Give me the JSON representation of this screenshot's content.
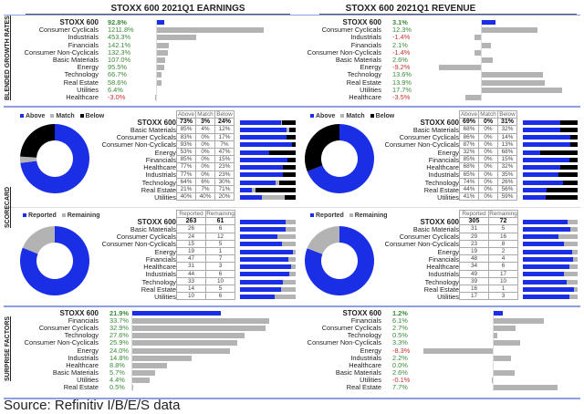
{
  "colors": {
    "above": "#1a2ee6",
    "match": "#b3b3b3",
    "below": "#000000",
    "positive": "#3a8a3a",
    "negative": "#d03030"
  },
  "side_labels": {
    "growth": "BLENDED GROWTH RATES",
    "scorecard": "SCORECARD",
    "surprise": "SURPRISE FACTORS"
  },
  "source": "Source: Refinitiv I/B/E/S data",
  "chart_data": [
    {
      "type": "bar",
      "title": "STOXX 600 2021Q1 EARNINGS",
      "section": "growth",
      "orientation": "horizontal",
      "categories": [
        "STOXX 600",
        "Consumer Cyclicals",
        "Industrials",
        "Financials",
        "Consumer Non-Cyclicals",
        "Basic Materials",
        "Energy",
        "Technology",
        "Real Estate",
        "Utilities",
        "Healthcare"
      ],
      "labels": [
        "92.8%",
        "1211.8%",
        "453.3%",
        "142.1%",
        "132.3%",
        "107.0%",
        "95.5%",
        "66.7%",
        "58.6%",
        "6.4%",
        "-3.0%"
      ],
      "values": [
        92.8,
        1211.8,
        453.3,
        142.1,
        132.3,
        107.0,
        95.5,
        66.7,
        58.6,
        6.4,
        -3.0
      ]
    },
    {
      "type": "bar",
      "title": "STOXX 600 2021Q1 REVENUE",
      "section": "growth",
      "orientation": "horizontal",
      "categories": [
        "STOXX 600",
        "Consumer Cyclicals",
        "Industrials",
        "Financials",
        "Consumer Non-Cyclicals",
        "Basic Materials",
        "Energy",
        "Technology",
        "Real Estate",
        "Utilities",
        "Healthcare"
      ],
      "labels": [
        "3.1%",
        "12.3%",
        "-1.4%",
        "2.1%",
        "-1.4%",
        "2.6%",
        "-9.2%",
        "13.6%",
        "13.9%",
        "17.7%",
        "-3.5%"
      ],
      "values": [
        3.1,
        12.3,
        -1.4,
        2.1,
        -1.4,
        2.6,
        -9.2,
        13.6,
        13.9,
        17.7,
        -3.5
      ]
    },
    {
      "type": "table",
      "section": "scorecard-earnings-beat",
      "legend": [
        "Above",
        "Match",
        "Below"
      ],
      "columns": [
        "Above",
        "Match",
        "Below"
      ],
      "rows": [
        [
          "STOXX 600",
          73,
          3,
          24
        ],
        [
          "Basic Materials",
          85,
          4,
          12
        ],
        [
          "Consumer Cyclicals",
          83,
          0,
          17
        ],
        [
          "Consumer Non-Cyclicals",
          93,
          0,
          7
        ],
        [
          "Energy",
          53,
          0,
          47
        ],
        [
          "Financials",
          85,
          0,
          15
        ],
        [
          "Healthcare",
          77,
          0,
          23
        ],
        [
          "Industrials",
          77,
          0,
          23
        ],
        [
          "Technology",
          64,
          6,
          30
        ],
        [
          "Real Estate",
          21,
          7,
          71
        ],
        [
          "Utilities",
          40,
          40,
          20
        ]
      ]
    },
    {
      "type": "table",
      "section": "scorecard-revenue-beat",
      "legend": [
        "Above",
        "Match",
        "Below"
      ],
      "columns": [
        "Above",
        "Match",
        "Below"
      ],
      "rows": [
        [
          "STOXX 600",
          69,
          0,
          31
        ],
        [
          "Basic Materials",
          68,
          0,
          32
        ],
        [
          "Consumer Cyclicals",
          86,
          0,
          14
        ],
        [
          "Consumer Non-Cyclicals",
          87,
          0,
          13
        ],
        [
          "Energy",
          32,
          0,
          68
        ],
        [
          "Financials",
          85,
          0,
          15
        ],
        [
          "Healthcare",
          68,
          0,
          32
        ],
        [
          "Industrials",
          65,
          0,
          35
        ],
        [
          "Technology",
          74,
          0,
          26
        ],
        [
          "Real Estate",
          44,
          0,
          56
        ],
        [
          "Utilities",
          41,
          0,
          59
        ]
      ]
    },
    {
      "type": "table",
      "section": "scorecard-earnings-reported",
      "legend": [
        "Reported",
        "Remaining"
      ],
      "columns": [
        "Reported",
        "Remaining"
      ],
      "rows": [
        [
          "STOXX 600",
          263,
          61
        ],
        [
          "Basic Materials",
          26,
          6
        ],
        [
          "Consumer Cyclicals",
          24,
          12
        ],
        [
          "Consumer Non-Cyclicals",
          15,
          5
        ],
        [
          "Energy",
          19,
          1
        ],
        [
          "Financials",
          47,
          7
        ],
        [
          "Healthcare",
          31,
          3
        ],
        [
          "Industrials",
          44,
          6
        ],
        [
          "Technology",
          33,
          10
        ],
        [
          "Real Estate",
          14,
          5
        ],
        [
          "Utilities",
          10,
          6
        ]
      ]
    },
    {
      "type": "table",
      "section": "scorecard-revenue-reported",
      "legend": [
        "Reported",
        "Remaining"
      ],
      "columns": [
        "Reported",
        "Remaining"
      ],
      "rows": [
        [
          "STOXX 600",
          305,
          72
        ],
        [
          "Basic Materials",
          31,
          5
        ],
        [
          "Consumer Cyclicals",
          29,
          16
        ],
        [
          "Consumer Non-Cyclicals",
          23,
          8
        ],
        [
          "Energy",
          19,
          2
        ],
        [
          "Financials",
          48,
          4
        ],
        [
          "Healthcare",
          34,
          6
        ],
        [
          "Industrials",
          49,
          17
        ],
        [
          "Technology",
          39,
          10
        ],
        [
          "Real Estate",
          16,
          1
        ],
        [
          "Utilities",
          17,
          3
        ]
      ]
    },
    {
      "type": "bar",
      "section": "surprise-earnings",
      "orientation": "horizontal",
      "categories": [
        "STOXX 600",
        "Financials",
        "Consumer Cyclicals",
        "Technology",
        "Consumer Non-Cyclicals",
        "Energy",
        "Industrials",
        "Healthcare",
        "Basic Materials",
        "Utilities",
        "Real Estate"
      ],
      "labels": [
        "21.9%",
        "33.7%",
        "32.9%",
        "27.6%",
        "25.9%",
        "24.0%",
        "14.8%",
        "8.8%",
        "5.7%",
        "4.4%",
        "0.5%"
      ],
      "values": [
        21.9,
        33.7,
        32.9,
        27.6,
        25.9,
        24.0,
        14.8,
        8.8,
        5.7,
        4.4,
        0.5
      ]
    },
    {
      "type": "bar",
      "section": "surprise-revenue",
      "orientation": "horizontal",
      "categories": [
        "STOXX 600",
        "Financials",
        "Consumer Cyclicals",
        "Technology",
        "Consumer Non-Cyclicals",
        "Energy",
        "Industrials",
        "Healthcare",
        "Basic Materials",
        "Utilities",
        "Real Estate"
      ],
      "labels": [
        "1.2%",
        "6.1%",
        "2.7%",
        "0.5%",
        "3.3%",
        "-8.3%",
        "2.2%",
        "0.0%",
        "2.6%",
        "-0.1%",
        "7.7%"
      ],
      "values": [
        1.2,
        6.1,
        2.7,
        0.5,
        3.3,
        -8.3,
        2.2,
        0.0,
        2.6,
        -0.1,
        7.7
      ]
    }
  ]
}
